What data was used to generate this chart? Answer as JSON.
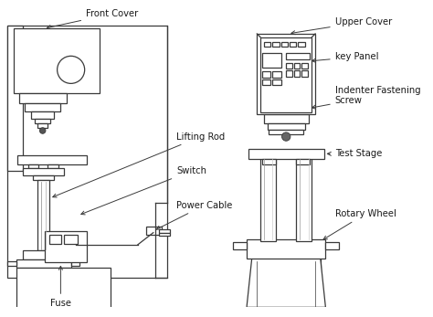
{
  "background_color": "#ffffff",
  "line_color": "#3a3a3a",
  "text_color": "#1a1a1a",
  "font_size": 7.2,
  "labels": {
    "front_cover": "Front Cover",
    "lifting_rod": "Lifting Rod",
    "switch": "Switch",
    "power_cable": "Power Cable",
    "fuse": "Fuse",
    "upper_cover": "Upper Cover",
    "key_panel": "key Panel",
    "indenter_fastening": "Indenter Fastening\nScrew",
    "test_stage": "Test Stage",
    "rotary_wheel": "Rotary Wheel"
  }
}
